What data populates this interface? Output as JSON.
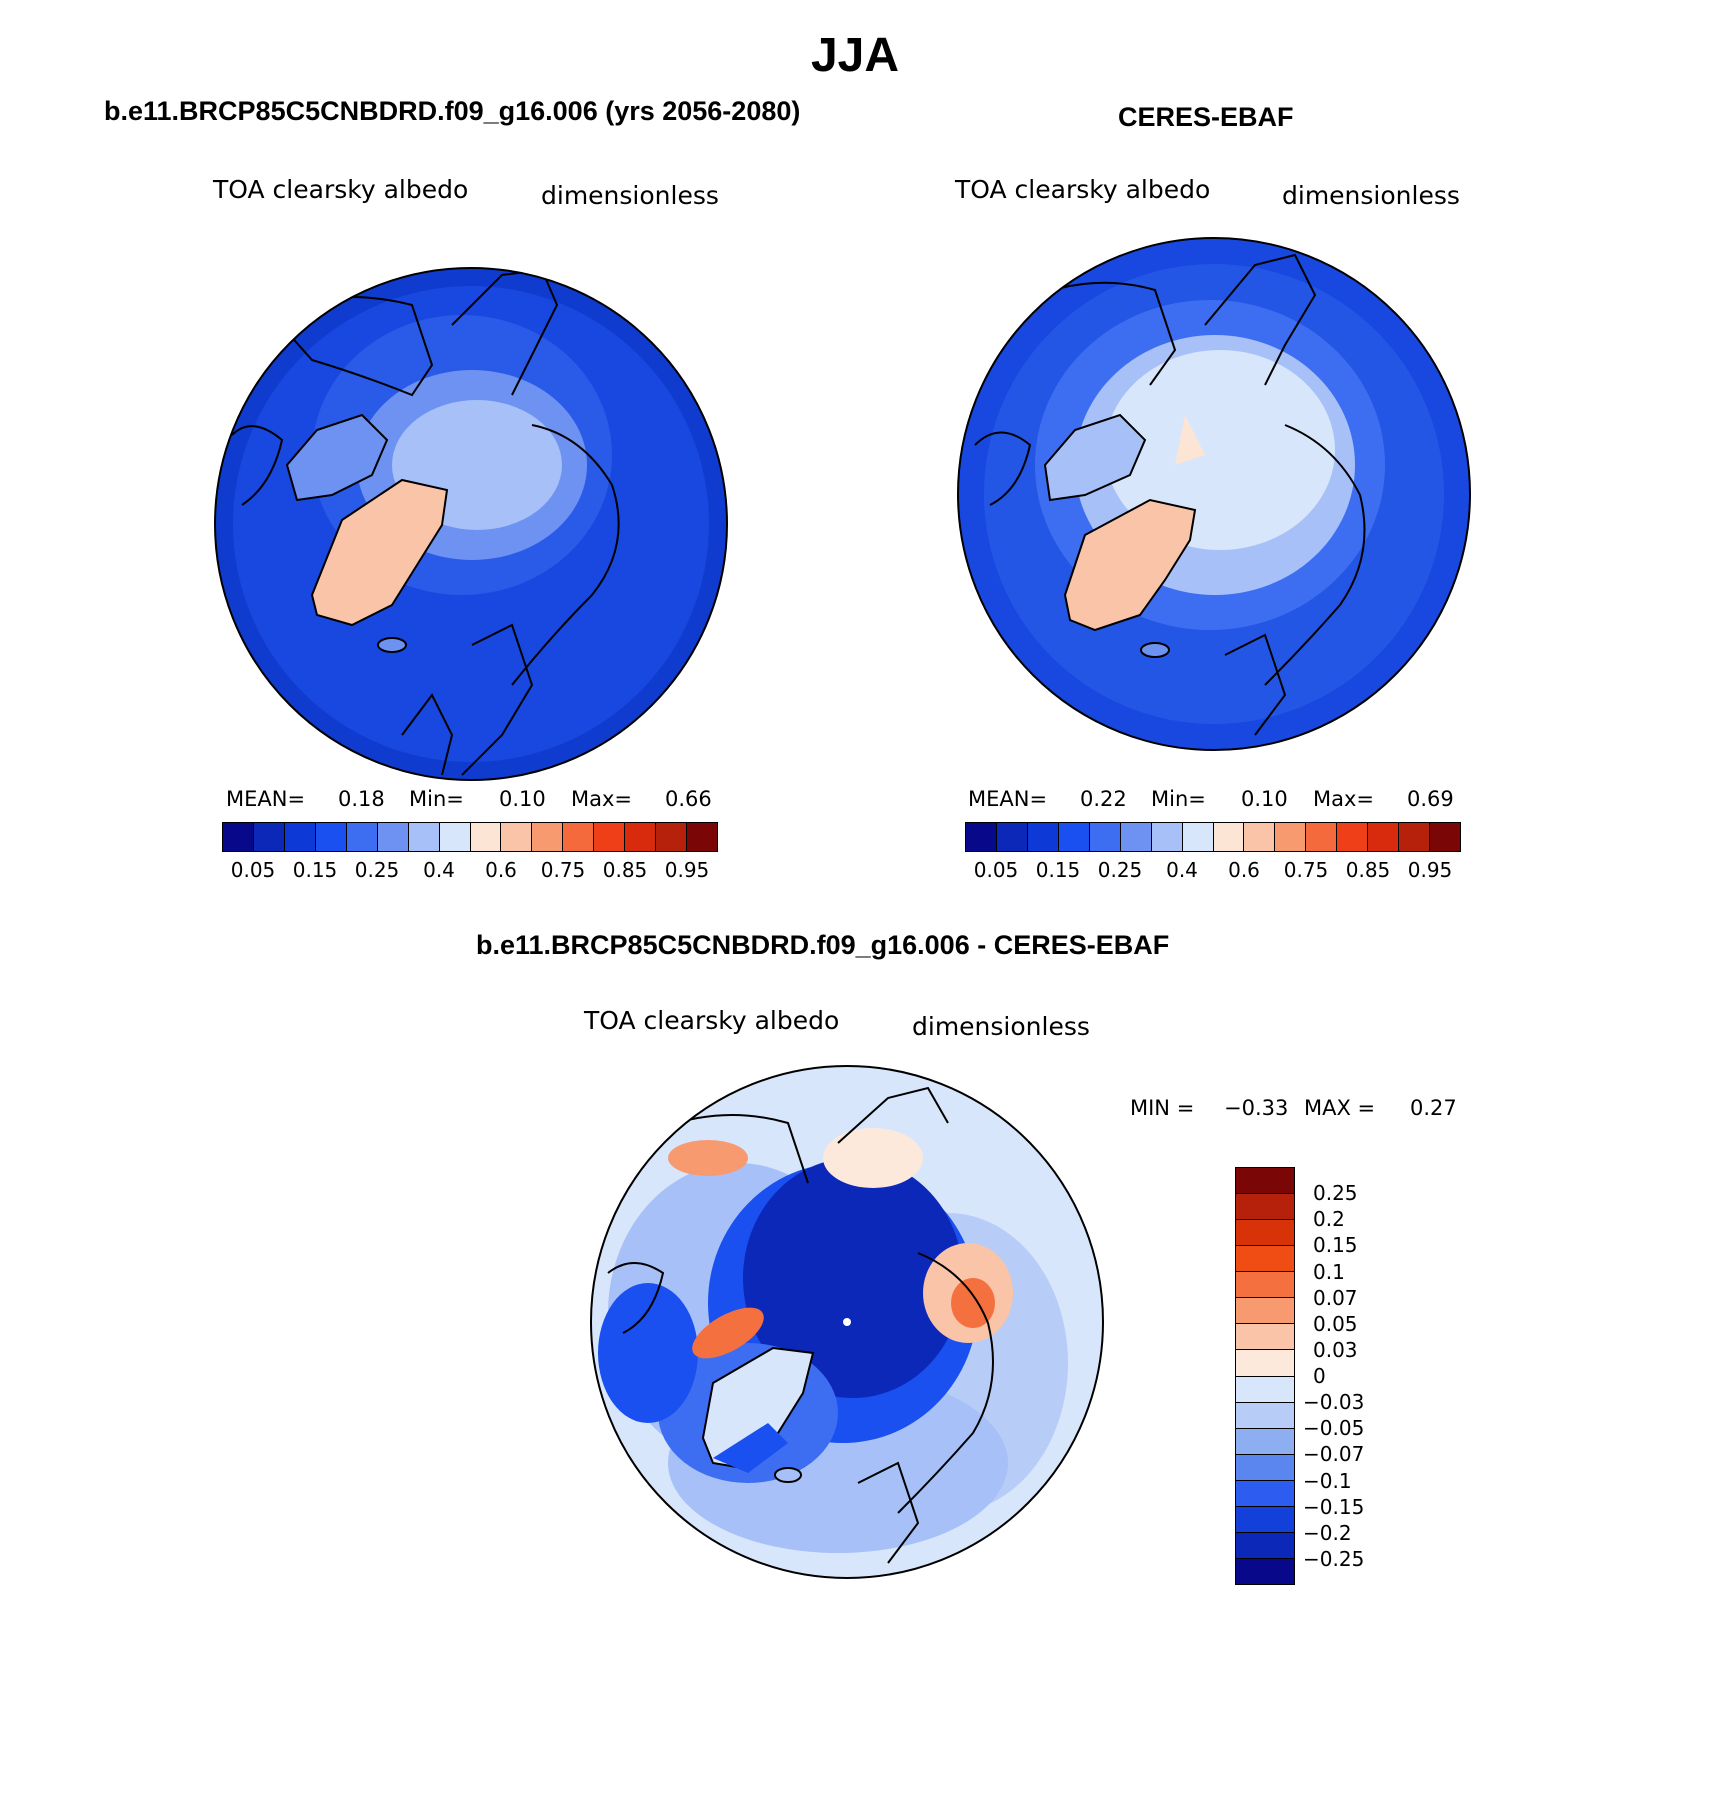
{
  "title": "JJA",
  "panels": [
    {
      "title": "b.e11.BRCP85C5CNBDRD.f09_g16.006 (yrs 2056-2080)",
      "variable": "TOA clearsky albedo",
      "units": "dimensionless",
      "mean_label": "MEAN=",
      "mean": "0.18",
      "min_label": "Min=",
      "min": "0.10",
      "max_label": "Max=",
      "max": "0.66"
    },
    {
      "title": "CERES-EBAF",
      "variable": "TOA clearsky albedo",
      "units": "dimensionless",
      "mean_label": "MEAN=",
      "mean": "0.22",
      "min_label": "Min=",
      "min": "0.10",
      "max_label": "Max=",
      "max": "0.69"
    }
  ],
  "diff": {
    "title": "b.e11.BRCP85C5CNBDRD.f09_g16.006 - CERES-EBAF",
    "variable": "TOA clearsky albedo",
    "units": "dimensionless",
    "min_label": "MIN =",
    "min": "−0.33",
    "max_label": "MAX =",
    "max": "0.27"
  },
  "colorbar_abs": {
    "colors": [
      "#08088a",
      "#0b28b8",
      "#0d3ad6",
      "#1a4ff0",
      "#3d6ef2",
      "#6d92f2",
      "#a7c0f7",
      "#d7e6fb",
      "#fde5d6",
      "#f9c4a8",
      "#f79a70",
      "#f46a3c",
      "#ef3f18",
      "#d82a0c",
      "#b5210a",
      "#7a0606"
    ],
    "ticks": [
      "0.05",
      "0.15",
      "0.25",
      "0.4",
      "0.6",
      "0.75",
      "0.85",
      "0.95"
    ]
  },
  "colorbar_diff": {
    "colors": [
      "#7a0606",
      "#b5210a",
      "#d83208",
      "#ef4d14",
      "#f4703e",
      "#f79a70",
      "#f9c4a8",
      "#fde9dc",
      "#d7e6fb",
      "#b7cdf7",
      "#8eaef2",
      "#5c86ef",
      "#2c5df0",
      "#1340d9",
      "#0b28b8",
      "#08088a"
    ],
    "ticks": [
      "0.25",
      "0.2",
      "0.15",
      "0.1",
      "0.07",
      "0.05",
      "0.03",
      "0",
      "−0.03",
      "−0.05",
      "−0.07",
      "−0.1",
      "−0.15",
      "−0.2",
      "−0.25"
    ]
  }
}
